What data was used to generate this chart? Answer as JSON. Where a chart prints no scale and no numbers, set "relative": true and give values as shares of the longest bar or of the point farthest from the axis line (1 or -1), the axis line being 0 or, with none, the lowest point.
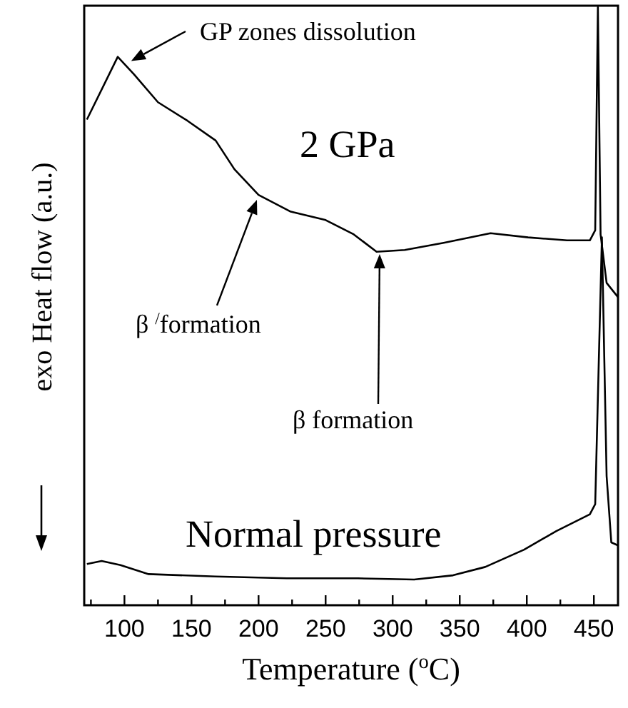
{
  "chart_data": {
    "type": "line",
    "relative": true,
    "xlabel": "Temperature ($^{o}$C)",
    "ylabel": "exo Heat flow (a.u.)",
    "xlim": [
      70,
      468
    ],
    "xticks": [
      {
        "value": 75,
        "label": null
      },
      100,
      {
        "value": 125,
        "label": null
      },
      150,
      {
        "value": 175,
        "label": null
      },
      200,
      {
        "value": 225,
        "label": null
      },
      250,
      {
        "value": 275,
        "label": null
      },
      300,
      {
        "value": 325,
        "label": null
      },
      350,
      {
        "value": 375,
        "label": null
      },
      400,
      {
        "value": 425,
        "label": null
      },
      450
    ],
    "grid": false,
    "legend": false,
    "marker": "none",
    "line_style": "solid",
    "series": [
      {
        "name": "2 GPa",
        "color": "#000000",
        "x": [
          72,
          95,
          107,
          125,
          147,
          168,
          182,
          200,
          224,
          250,
          271,
          288,
          309,
          338,
          373,
          401,
          430,
          447,
          451,
          453,
          455,
          459.5,
          468
        ],
        "values": [
          0.812,
          0.917,
          0.888,
          0.841,
          0.81,
          0.777,
          0.729,
          0.686,
          0.658,
          0.644,
          0.62,
          0.591,
          0.594,
          0.606,
          0.622,
          0.615,
          0.61,
          0.61,
          0.627,
          1.0,
          0.62,
          0.539,
          0.515
        ]
      },
      {
        "name": "Normal pressure",
        "color": "#000000",
        "x": [
          72,
          83,
          97,
          118,
          168,
          221,
          274,
          316,
          345,
          369,
          398,
          422,
          447,
          451,
          456,
          459.5,
          463,
          468
        ],
        "values": [
          0.069,
          0.074,
          0.067,
          0.052,
          0.048,
          0.045,
          0.045,
          0.043,
          0.05,
          0.064,
          0.093,
          0.124,
          0.152,
          0.169,
          0.615,
          0.216,
          0.105,
          0.1
        ]
      }
    ],
    "annotations": [
      {
        "text": "GP zones dissolution",
        "x": 105,
        "y": 0.91
      },
      "β $^{/}$formation",
      "β  formation"
    ]
  }
}
